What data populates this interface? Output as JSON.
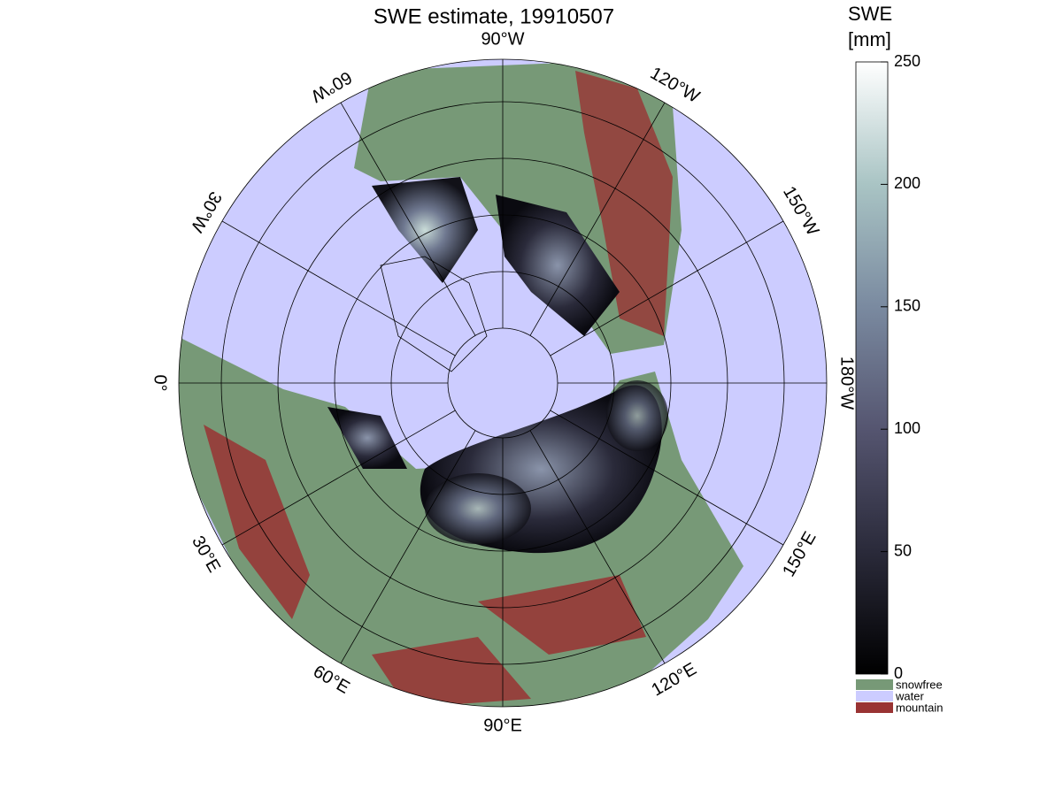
{
  "title": "SWE estimate, 19910507",
  "longitude_labels": [
    {
      "label": "90°W",
      "angle": -90
    },
    {
      "label": "120°W",
      "angle": -60
    },
    {
      "label": "150°W",
      "angle": -30
    },
    {
      "label": "180°W",
      "angle": 0
    },
    {
      "label": "150°E",
      "angle": 30
    },
    {
      "label": "120°E",
      "angle": 60
    },
    {
      "label": "90°E",
      "angle": 90
    },
    {
      "label": "60°E",
      "angle": 120
    },
    {
      "label": "30°E",
      "angle": 150
    },
    {
      "label": "0°",
      "angle": 180
    },
    {
      "label": "30°W",
      "angle": 210
    },
    {
      "label": "60°W",
      "angle": 240
    }
  ],
  "colorbar": {
    "label": [
      "SWE",
      "[mm]"
    ],
    "lim": [
      0,
      250
    ],
    "ticks": [
      0,
      50,
      100,
      150,
      200,
      250
    ],
    "colors": [
      "#000000",
      "#2a2a3a",
      "#555570",
      "#7a8aa0",
      "#a9c4c4",
      "#ffffff"
    ]
  },
  "legend": [
    {
      "name": "snowfree",
      "color": "#779977"
    },
    {
      "name": "water",
      "color": "#ccccff"
    },
    {
      "name": "mountain",
      "color": "#993333"
    }
  ]
}
